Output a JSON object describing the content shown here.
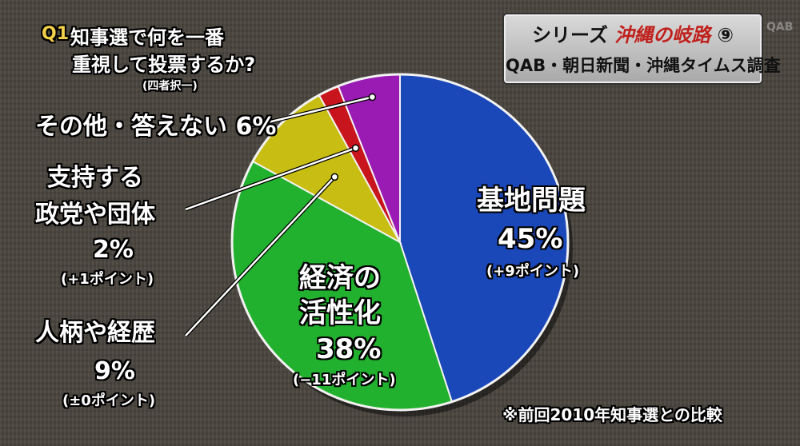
{
  "question": {
    "badge": "Q1",
    "title_line1": "知事選で何を一番",
    "title_line2": "重視して投票するか?",
    "note": "(四者択一)"
  },
  "series": {
    "prefix": "シリーズ",
    "name": "沖縄の岐路",
    "number": "⑨",
    "sources": "QAB・朝日新聞・沖縄タイムス調査",
    "logo": "QAB"
  },
  "chart_data": {
    "type": "pie",
    "title": "知事選で何を一番重視して投票するか?",
    "slices": [
      {
        "label": "基地問題",
        "value": 45,
        "value_text": "45%",
        "change": "(+9ポイント)",
        "color": "#1a48b8"
      },
      {
        "label": "経済の活性化",
        "label_line1": "経済の",
        "label_line2": "活性化",
        "value": 38,
        "value_text": "38%",
        "change": "(−11ポイント)",
        "color": "#22b12e"
      },
      {
        "label": "人柄や経歴",
        "value": 9,
        "value_text": "9%",
        "change": "(±0ポイント)",
        "color": "#c8bd12"
      },
      {
        "label": "支持する政党や団体",
        "label_line1": "支持する",
        "label_line2": "政党や団体",
        "value": 2,
        "value_text": "2%",
        "change": "(+1ポイント)",
        "color": "#c8141c"
      },
      {
        "label": "その他・答えない",
        "value": 6,
        "value_text": "6%",
        "change": "",
        "color": "#9a1ab4"
      }
    ],
    "other_label_text": "その他・答えない 6%",
    "footnote": "※前回2010年知事選との比較"
  }
}
